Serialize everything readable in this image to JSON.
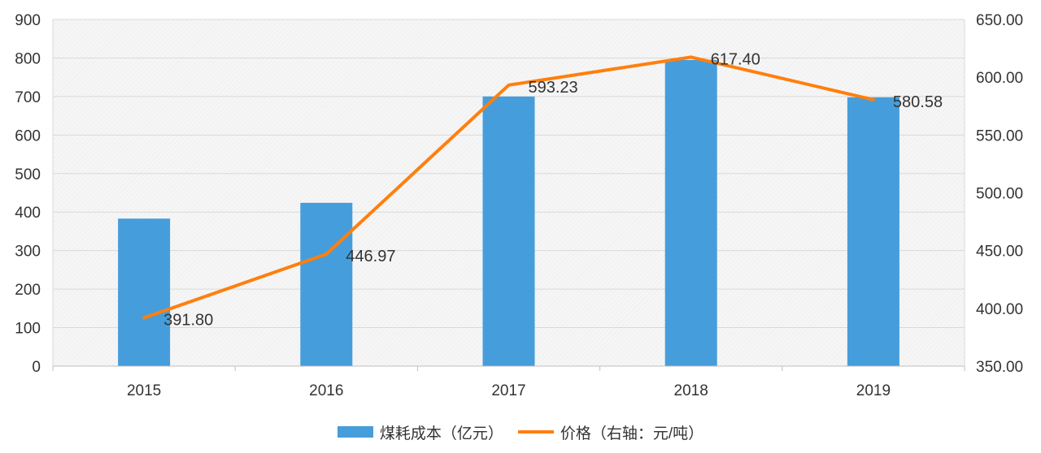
{
  "chart_data": {
    "type": "bar+line",
    "categories": [
      "2015",
      "2016",
      "2017",
      "2018",
      "2019"
    ],
    "series": [
      {
        "name": "煤耗成本（亿元）",
        "type": "bar",
        "axis": "left",
        "values": [
          383,
          424,
          700,
          795,
          698
        ],
        "color": "#469ddb"
      },
      {
        "name": "价格（右轴：元/吨）",
        "type": "line",
        "axis": "right",
        "values": [
          391.8,
          446.97,
          593.23,
          617.4,
          580.58
        ],
        "labels": [
          "391.80",
          "446.97",
          "593.23",
          "617.40",
          "580.58"
        ],
        "color": "#ff7f0e"
      }
    ],
    "y_left": {
      "min": 0,
      "max": 900,
      "step": 100,
      "ticks": [
        "0",
        "100",
        "200",
        "300",
        "400",
        "500",
        "600",
        "700",
        "800",
        "900"
      ]
    },
    "y_right": {
      "min": 350,
      "max": 650,
      "step": 50,
      "ticks": [
        "350.00",
        "400.00",
        "450.00",
        "500.00",
        "550.00",
        "600.00",
        "650.00"
      ]
    },
    "grid": true,
    "legend_position": "bottom"
  }
}
